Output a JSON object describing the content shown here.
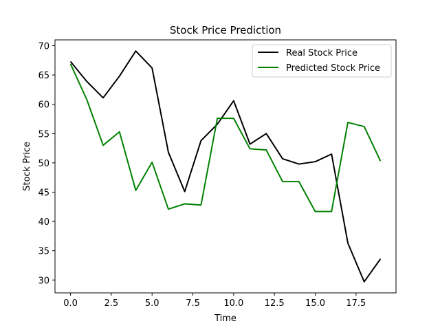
{
  "chart_data": {
    "type": "line",
    "title": "Stock Price Prediction",
    "xlabel": "Time",
    "ylabel": "Stock Price",
    "xlim": [
      -0.95,
      19.95
    ],
    "ylim": [
      27.8,
      71.0
    ],
    "xticks": [
      0.0,
      2.5,
      5.0,
      7.5,
      10.0,
      12.5,
      15.0,
      17.5
    ],
    "xtick_labels": [
      "0.0",
      "2.5",
      "5.0",
      "7.5",
      "10.0",
      "12.5",
      "15.0",
      "17.5"
    ],
    "yticks": [
      30,
      35,
      40,
      45,
      50,
      55,
      60,
      65,
      70
    ],
    "ytick_labels": [
      "30",
      "35",
      "40",
      "45",
      "50",
      "55",
      "60",
      "65",
      "70"
    ],
    "grid": false,
    "legend_position": "top-right",
    "x": [
      0,
      1,
      2,
      3,
      4,
      5,
      6,
      7,
      8,
      9,
      10,
      11,
      12,
      13,
      14,
      15,
      16,
      17,
      18,
      19
    ],
    "series": [
      {
        "name": "Real Stock Price",
        "color": "#000000",
        "values": [
          67.3,
          63.9,
          61.1,
          64.8,
          69.1,
          66.2,
          51.8,
          45.1,
          53.8,
          56.6,
          60.6,
          53.2,
          55.0,
          50.7,
          49.8,
          50.2,
          51.5,
          36.3,
          29.7,
          33.6
        ]
      },
      {
        "name": "Predicted Stock Price",
        "color": "#008000",
        "values": [
          66.9,
          60.8,
          53.0,
          55.3,
          45.3,
          50.1,
          42.1,
          43.0,
          42.8,
          57.6,
          57.6,
          52.4,
          52.2,
          46.8,
          46.8,
          41.7,
          41.7,
          56.9,
          56.2,
          50.3
        ]
      }
    ]
  }
}
